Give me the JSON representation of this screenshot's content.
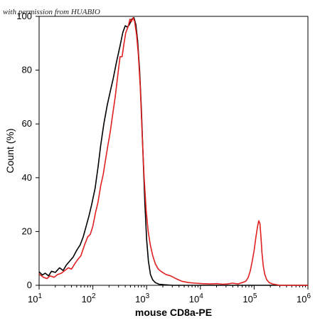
{
  "watermark": "with permission from HUABIO",
  "chart_data": {
    "type": "line",
    "title": "",
    "xlabel": "mouse CD8a-PE",
    "ylabel": "Count  (%)",
    "x_scale": "log",
    "xlim": [
      10,
      1000000
    ],
    "ylim": [
      0,
      100
    ],
    "x_ticks": [
      {
        "base": "10",
        "exp": "1",
        "value": 10
      },
      {
        "base": "10",
        "exp": "2",
        "value": 100
      },
      {
        "base": "10",
        "exp": "3",
        "value": 1000
      },
      {
        "base": "10",
        "exp": "4",
        "value": 10000
      },
      {
        "base": "10",
        "exp": "5",
        "value": 100000
      },
      {
        "base": "10",
        "exp": "6",
        "value": 1000000
      }
    ],
    "y_ticks": [
      "0",
      "20",
      "40",
      "60",
      "80",
      "100"
    ],
    "grid": false,
    "series": [
      {
        "color": "#000000",
        "points": [
          [
            10,
            5
          ],
          [
            11.5,
            3.8
          ],
          [
            13,
            4.5
          ],
          [
            15,
            3.5
          ],
          [
            17,
            5.2
          ],
          [
            20,
            4.8
          ],
          [
            24,
            6.5
          ],
          [
            28,
            5.5
          ],
          [
            32,
            7.5
          ],
          [
            37,
            9
          ],
          [
            43,
            10.5
          ],
          [
            50,
            13
          ],
          [
            58,
            15
          ],
          [
            66,
            18
          ],
          [
            75,
            22
          ],
          [
            85,
            26
          ],
          [
            95,
            30
          ],
          [
            110,
            36
          ],
          [
            125,
            44
          ],
          [
            140,
            52
          ],
          [
            160,
            60
          ],
          [
            185,
            67
          ],
          [
            210,
            72
          ],
          [
            240,
            77
          ],
          [
            275,
            83
          ],
          [
            320,
            89
          ],
          [
            360,
            94
          ],
          [
            400,
            96.5
          ],
          [
            440,
            96
          ],
          [
            480,
            97
          ],
          [
            530,
            99
          ],
          [
            580,
            99.5
          ],
          [
            630,
            97
          ],
          [
            680,
            91
          ],
          [
            740,
            80
          ],
          [
            800,
            65
          ],
          [
            860,
            48
          ],
          [
            930,
            30
          ],
          [
            1000,
            17
          ],
          [
            1080,
            9
          ],
          [
            1180,
            4
          ],
          [
            1300,
            2
          ],
          [
            1450,
            1
          ],
          [
            1700,
            0.4
          ],
          [
            2100,
            0.2
          ],
          [
            3000,
            0
          ],
          [
            1000000,
            0
          ]
        ]
      },
      {
        "color": "#e02020",
        "points": [
          [
            10,
            4.2
          ],
          [
            12,
            3
          ],
          [
            14,
            2.5
          ],
          [
            16,
            3.5
          ],
          [
            19,
            3
          ],
          [
            22,
            4
          ],
          [
            26,
            4.5
          ],
          [
            30,
            5.5
          ],
          [
            35,
            6.5
          ],
          [
            40,
            6
          ],
          [
            46,
            8
          ],
          [
            52,
            9.5
          ],
          [
            60,
            11
          ],
          [
            70,
            15
          ],
          [
            80,
            18
          ],
          [
            90,
            19
          ],
          [
            100,
            22
          ],
          [
            112,
            27
          ],
          [
            125,
            31
          ],
          [
            140,
            37
          ],
          [
            155,
            41
          ],
          [
            170,
            46
          ],
          [
            190,
            52
          ],
          [
            210,
            57
          ],
          [
            235,
            64
          ],
          [
            260,
            70
          ],
          [
            290,
            78
          ],
          [
            320,
            85
          ],
          [
            350,
            85
          ],
          [
            380,
            90
          ],
          [
            410,
            94
          ],
          [
            450,
            96
          ],
          [
            490,
            99
          ],
          [
            520,
            98
          ],
          [
            560,
            99.5
          ],
          [
            600,
            98
          ],
          [
            650,
            93
          ],
          [
            700,
            86
          ],
          [
            760,
            74
          ],
          [
            830,
            55
          ],
          [
            900,
            40
          ],
          [
            980,
            28
          ],
          [
            1070,
            20
          ],
          [
            1170,
            15
          ],
          [
            1300,
            11
          ],
          [
            1450,
            8
          ],
          [
            1650,
            6
          ],
          [
            1900,
            5
          ],
          [
            2300,
            4
          ],
          [
            2800,
            3.5
          ],
          [
            3500,
            2.5
          ],
          [
            4500,
            1.5
          ],
          [
            6000,
            1
          ],
          [
            8000,
            0.8
          ],
          [
            11000,
            0.6
          ],
          [
            15000,
            0.5
          ],
          [
            20000,
            0.6
          ],
          [
            26000,
            0.4
          ],
          [
            32000,
            0.5
          ],
          [
            40000,
            0.8
          ],
          [
            50000,
            0.5
          ],
          [
            60000,
            1
          ],
          [
            70000,
            1.5
          ],
          [
            78000,
            3
          ],
          [
            85000,
            5.5
          ],
          [
            92000,
            9
          ],
          [
            100000,
            13
          ],
          [
            108000,
            18
          ],
          [
            116000,
            22
          ],
          [
            122000,
            24
          ],
          [
            128000,
            23
          ],
          [
            134000,
            18
          ],
          [
            140000,
            12
          ],
          [
            148000,
            7
          ],
          [
            158000,
            4
          ],
          [
            172000,
            2
          ],
          [
            190000,
            1
          ],
          [
            220000,
            0.5
          ],
          [
            300000,
            0
          ],
          [
            1000000,
            0
          ]
        ]
      }
    ]
  }
}
